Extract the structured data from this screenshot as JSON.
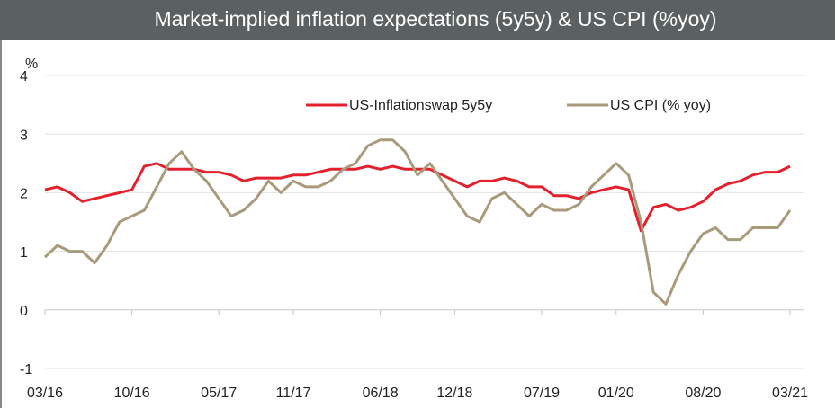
{
  "chart_data": {
    "type": "line",
    "title": "Market-implied inflation expectations (5y5y) & US CPI (%yoy)",
    "ylabel": "%",
    "categories": [
      "03/16",
      null,
      null,
      null,
      null,
      null,
      null,
      "10/16",
      null,
      null,
      null,
      null,
      null,
      null,
      "05/17",
      null,
      null,
      null,
      null,
      null,
      "11/17",
      null,
      null,
      null,
      null,
      null,
      null,
      "06/18",
      null,
      null,
      null,
      null,
      null,
      "12/18",
      null,
      null,
      null,
      null,
      null,
      null,
      "07/19",
      null,
      null,
      null,
      null,
      null,
      "01/20",
      null,
      null,
      null,
      null,
      null,
      null,
      "08/20",
      null,
      null,
      null,
      null,
      null,
      null,
      "03/21"
    ],
    "series": [
      {
        "name": "US-Inflationswap 5y5y",
        "color": "#e3212d",
        "values": [
          2.05,
          2.1,
          2.0,
          1.85,
          1.9,
          1.95,
          2.0,
          2.05,
          2.45,
          2.5,
          2.4,
          2.4,
          2.4,
          2.35,
          2.35,
          2.3,
          2.2,
          2.25,
          2.25,
          2.25,
          2.3,
          2.3,
          2.35,
          2.4,
          2.4,
          2.4,
          2.45,
          2.4,
          2.45,
          2.4,
          2.4,
          2.4,
          2.3,
          2.2,
          2.1,
          2.2,
          2.2,
          2.25,
          2.2,
          2.1,
          2.1,
          1.95,
          1.95,
          1.9,
          2.0,
          2.05,
          2.1,
          2.05,
          1.35,
          1.75,
          1.8,
          1.7,
          1.75,
          1.85,
          2.05,
          2.15,
          2.2,
          2.3,
          2.35,
          2.35,
          2.45
        ]
      },
      {
        "name": "US CPI (% yoy)",
        "color": "#a89a7a",
        "values": [
          0.9,
          1.1,
          1.0,
          1.0,
          0.8,
          1.1,
          1.5,
          1.6,
          1.7,
          2.1,
          2.5,
          2.7,
          2.4,
          2.2,
          1.9,
          1.6,
          1.7,
          1.9,
          2.2,
          2.0,
          2.2,
          2.1,
          2.1,
          2.2,
          2.4,
          2.5,
          2.8,
          2.9,
          2.9,
          2.7,
          2.3,
          2.5,
          2.2,
          1.9,
          1.6,
          1.5,
          1.9,
          2.0,
          1.8,
          1.6,
          1.8,
          1.7,
          1.7,
          1.8,
          2.1,
          2.3,
          2.5,
          2.3,
          1.5,
          0.3,
          0.1,
          0.6,
          1.0,
          1.3,
          1.4,
          1.2,
          1.2,
          1.4,
          1.4,
          1.4,
          1.7
        ]
      }
    ],
    "ylim": [
      -1,
      4
    ],
    "yticks": [
      -1,
      0,
      1,
      2,
      3,
      4
    ],
    "grid": true,
    "legend": "top"
  }
}
